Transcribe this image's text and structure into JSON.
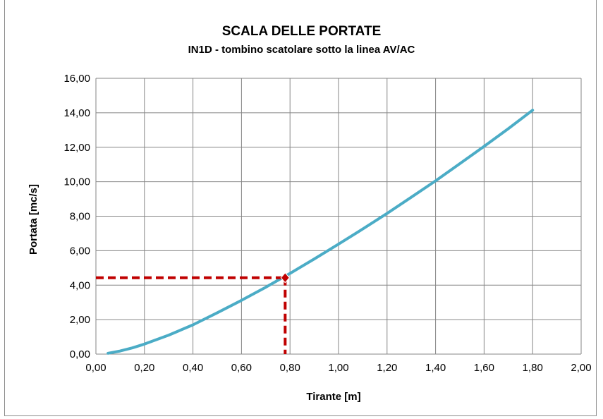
{
  "chart_data": {
    "type": "line",
    "title": "SCALA DELLE PORTATE",
    "subtitle": "IN1D - tombino scatolare sotto la linea AV/AC",
    "xlabel": "Tirante [m]",
    "ylabel": "Portata [mc/s]",
    "xlim": [
      0,
      2.0
    ],
    "ylim": [
      0,
      16.0
    ],
    "x_ticks": [
      "0,00",
      "0,20",
      "0,40",
      "0,60",
      "0,80",
      "1,00",
      "1,20",
      "1,40",
      "1,60",
      "1,80",
      "2,00"
    ],
    "y_ticks": [
      "0,00",
      "2,00",
      "4,00",
      "6,00",
      "8,00",
      "10,00",
      "12,00",
      "14,00",
      "16,00"
    ],
    "grid": true,
    "legend": "none",
    "series": [
      {
        "color": "#4bacc6",
        "x": [
          0.05,
          0.1,
          0.15,
          0.2,
          0.3,
          0.4,
          0.5,
          0.6,
          0.7,
          0.8,
          0.9,
          1.0,
          1.1,
          1.2,
          1.3,
          1.4,
          1.5,
          1.6,
          1.7,
          1.8
        ],
        "y": [
          0.05,
          0.18,
          0.36,
          0.58,
          1.1,
          1.7,
          2.4,
          3.12,
          3.88,
          4.68,
          5.52,
          6.38,
          7.26,
          8.16,
          9.1,
          10.05,
          11.05,
          12.05,
          13.08,
          14.15
        ]
      }
    ],
    "highlight": {
      "x": 0.78,
      "y": 4.43,
      "color": "#c00000"
    }
  }
}
